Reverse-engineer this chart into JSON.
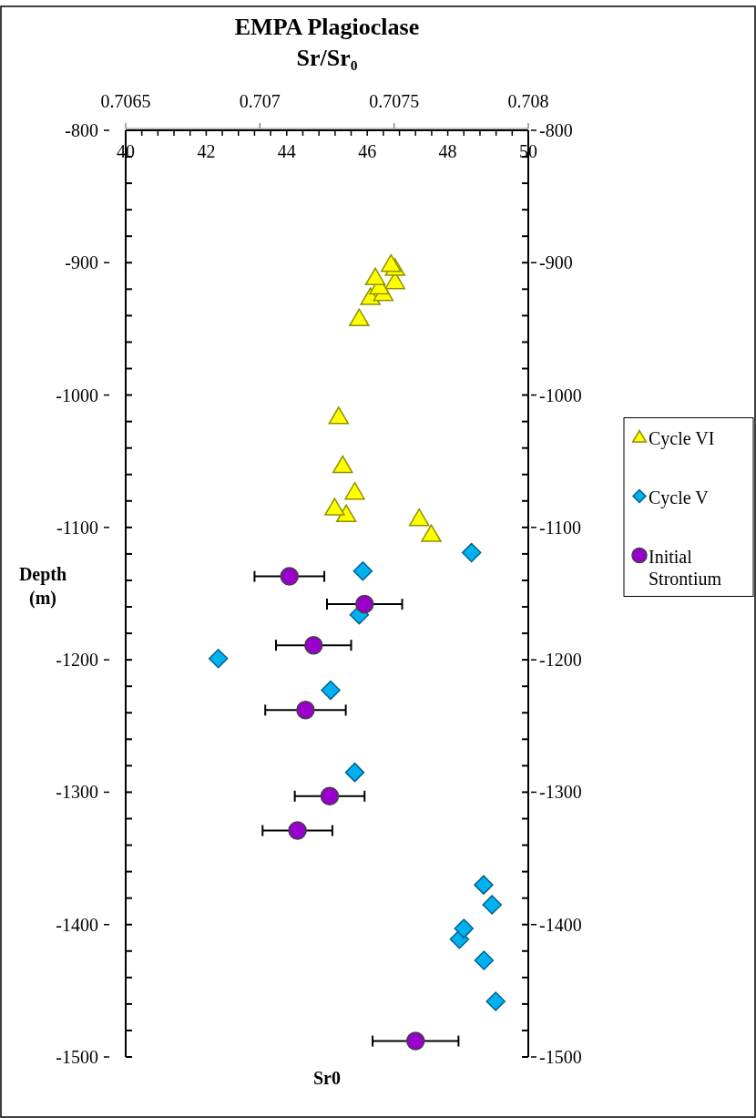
{
  "chart_data": {
    "type": "scatter",
    "title": "EMPA Plagioclase",
    "x2label": "Sr/Sr₀",
    "xlabel": "Sr0",
    "ylabel": "Depth (m)",
    "legend": "right",
    "grid": false,
    "xlim": [
      40,
      50
    ],
    "xticks": [
      40,
      {
        "value": 40.4,
        "label": null
      },
      {
        "value": 40.8,
        "label": null
      },
      {
        "value": 41.2,
        "label": null
      },
      {
        "value": 41.6,
        "label": null
      },
      42,
      {
        "value": 42.4,
        "label": null
      },
      {
        "value": 42.8,
        "label": null
      },
      {
        "value": 43.2,
        "label": null
      },
      {
        "value": 43.6,
        "label": null
      },
      44,
      {
        "value": 44.4,
        "label": null
      },
      {
        "value": 44.8,
        "label": null
      },
      {
        "value": 45.2,
        "label": null
      },
      {
        "value": 45.6,
        "label": null
      },
      46,
      {
        "value": 46.4,
        "label": null
      },
      {
        "value": 46.8,
        "label": null
      },
      {
        "value": 47.2,
        "label": null
      },
      {
        "value": 47.6,
        "label": null
      },
      48,
      {
        "value": 48.4,
        "label": null
      },
      {
        "value": 48.8,
        "label": null
      },
      {
        "value": 49.2,
        "label": null
      },
      {
        "value": 49.6,
        "label": null
      },
      50
    ],
    "x2lim": [
      0.7065,
      0.708
    ],
    "x2ticks": [
      0.7065,
      0.707,
      0.7075,
      0.708
    ],
    "ylim": [
      -1500,
      -800
    ],
    "yticks": [
      -800,
      {
        "value": -820,
        "label": null
      },
      {
        "value": -840,
        "label": null
      },
      {
        "value": -860,
        "label": null
      },
      {
        "value": -880,
        "label": null
      },
      -900,
      {
        "value": -920,
        "label": null
      },
      {
        "value": -940,
        "label": null
      },
      {
        "value": -960,
        "label": null
      },
      {
        "value": -980,
        "label": null
      },
      -1000,
      {
        "value": -1020,
        "label": null
      },
      {
        "value": -1040,
        "label": null
      },
      {
        "value": -1060,
        "label": null
      },
      {
        "value": -1080,
        "label": null
      },
      -1100,
      {
        "value": -1120,
        "label": null
      },
      {
        "value": -1140,
        "label": null
      },
      {
        "value": -1160,
        "label": null
      },
      {
        "value": -1180,
        "label": null
      },
      -1200,
      {
        "value": -1220,
        "label": null
      },
      {
        "value": -1240,
        "label": null
      },
      {
        "value": -1260,
        "label": null
      },
      {
        "value": -1280,
        "label": null
      },
      -1300,
      {
        "value": -1320,
        "label": null
      },
      {
        "value": -1340,
        "label": null
      },
      {
        "value": -1360,
        "label": null
      },
      {
        "value": -1380,
        "label": null
      },
      -1400,
      {
        "value": -1420,
        "label": null
      },
      {
        "value": -1440,
        "label": null
      },
      {
        "value": -1460,
        "label": null
      },
      {
        "value": -1480,
        "label": null
      },
      -1500
    ],
    "y2lim": [
      -1500,
      -800
    ],
    "y2ticks": [
      -800,
      -900,
      -1000,
      -1100,
      -1200,
      -1300,
      -1400,
      -1500
    ],
    "series": [
      {
        "name": "Cycle VI",
        "color": "#ffff00",
        "marker": "triangle",
        "x": [
          46.59,
          46.69,
          46.2,
          46.3,
          46.69,
          46.4,
          46.08,
          45.8,
          45.29,
          45.39,
          45.69,
          45.19,
          45.48,
          47.29,
          47.59
        ],
        "values": [
          -901,
          -904,
          -911,
          -918,
          -914,
          -923,
          -926,
          -942,
          -1016,
          -1053,
          -1073,
          -1085,
          -1090,
          -1093,
          -1105
        ]
      },
      {
        "name": "Cycle V",
        "color": "#00b0f0",
        "marker": "diamond",
        "x": [
          48.59,
          45.89,
          45.8,
          42.3,
          45.09,
          45.69,
          48.89,
          49.1,
          48.4,
          48.29,
          48.9,
          49.19
        ],
        "values": [
          -1119,
          -1133,
          -1166,
          -1199,
          -1223,
          -1285,
          -1370,
          -1385,
          -1403,
          -1411,
          -1427,
          -1458
        ]
      },
      {
        "name": "Initial Strontium",
        "color": "#9900cc",
        "marker": "circle",
        "axis": "x2",
        "x": [
          0.70711,
          0.70739,
          0.7072,
          0.70717,
          0.70726,
          0.70714,
          0.70758
        ],
        "values": [
          -1137,
          -1158,
          -1189,
          -1238,
          -1303,
          -1329,
          -1488
        ],
        "xerrors": [
          0.00013,
          0.00014,
          0.00014,
          0.00015,
          0.00013,
          0.00013,
          0.00016
        ]
      }
    ]
  }
}
